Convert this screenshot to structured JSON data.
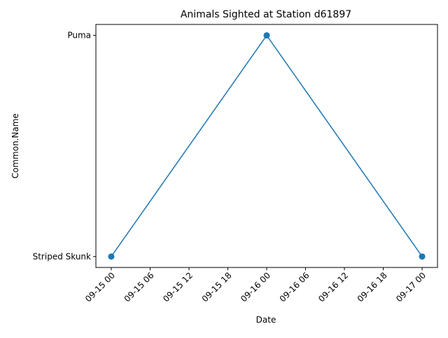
{
  "chart_data": {
    "type": "line",
    "title": "Animals Sighted at Station d61897",
    "xlabel": "Date",
    "ylabel": "Common.Name",
    "x": [
      "2023-09-15 00:00",
      "2023-09-16 00:00",
      "2023-09-17 00:00"
    ],
    "y": [
      "Striped Skunk",
      "Puma",
      "Striped Skunk"
    ],
    "y_categories": [
      "Striped Skunk",
      "Puma"
    ],
    "x_ticks": [
      "09-15 00",
      "09-15 06",
      "09-15 12",
      "09-15 18",
      "09-16 00",
      "09-16 06",
      "09-16 12",
      "09-16 18",
      "09-17 00"
    ],
    "x_tick_step_hours": 6,
    "x_range_hours": [
      0,
      48
    ],
    "markers": "circle",
    "line_color": "#1f77b4",
    "grid": false,
    "legend": "none"
  }
}
